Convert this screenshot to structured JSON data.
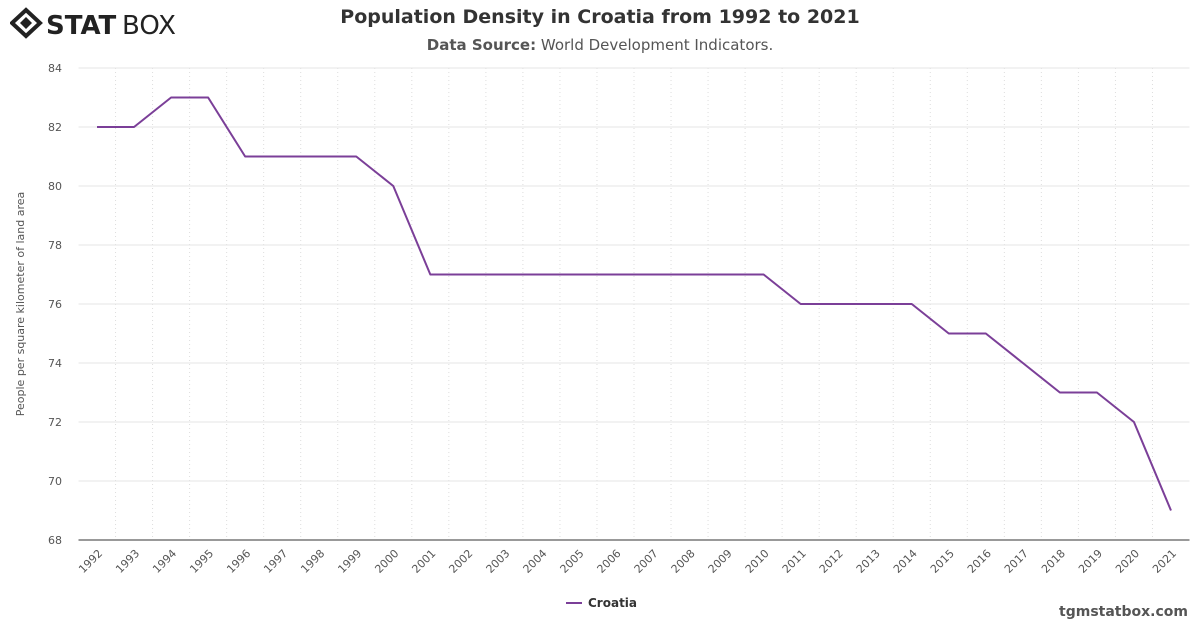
{
  "logo": "STATBOX",
  "title": "Population Density in Croatia from 1992 to 2021",
  "subtitle_label": "Data Source:",
  "subtitle_value": "World Development Indicators.",
  "credit": "tgmstatbox.com",
  "chart_data": {
    "type": "line",
    "title": "Population Density in Croatia from 1992 to 2021",
    "xlabel": "",
    "ylabel": "People per square kilometer of land area",
    "ylim": [
      68,
      84
    ],
    "yticks": [
      68,
      70,
      72,
      74,
      76,
      78,
      80,
      82,
      84
    ],
    "categories": [
      "1992",
      "1993",
      "1994",
      "1995",
      "1996",
      "1997",
      "1998",
      "1999",
      "2000",
      "2001",
      "2002",
      "2003",
      "2004",
      "2005",
      "2006",
      "2007",
      "2008",
      "2009",
      "2010",
      "2011",
      "2012",
      "2013",
      "2014",
      "2015",
      "2016",
      "2017",
      "2018",
      "2019",
      "2020",
      "2021"
    ],
    "series": [
      {
        "name": "Croatia",
        "color": "#7b3f98",
        "values": [
          82,
          82,
          83,
          83,
          81,
          81,
          81,
          81,
          80,
          77,
          77,
          77,
          77,
          77,
          77,
          77,
          77,
          77,
          77,
          76,
          76,
          76,
          76,
          75,
          75,
          74,
          73,
          73,
          72,
          69
        ]
      }
    ],
    "grid": true,
    "legend": "bottom-center"
  }
}
